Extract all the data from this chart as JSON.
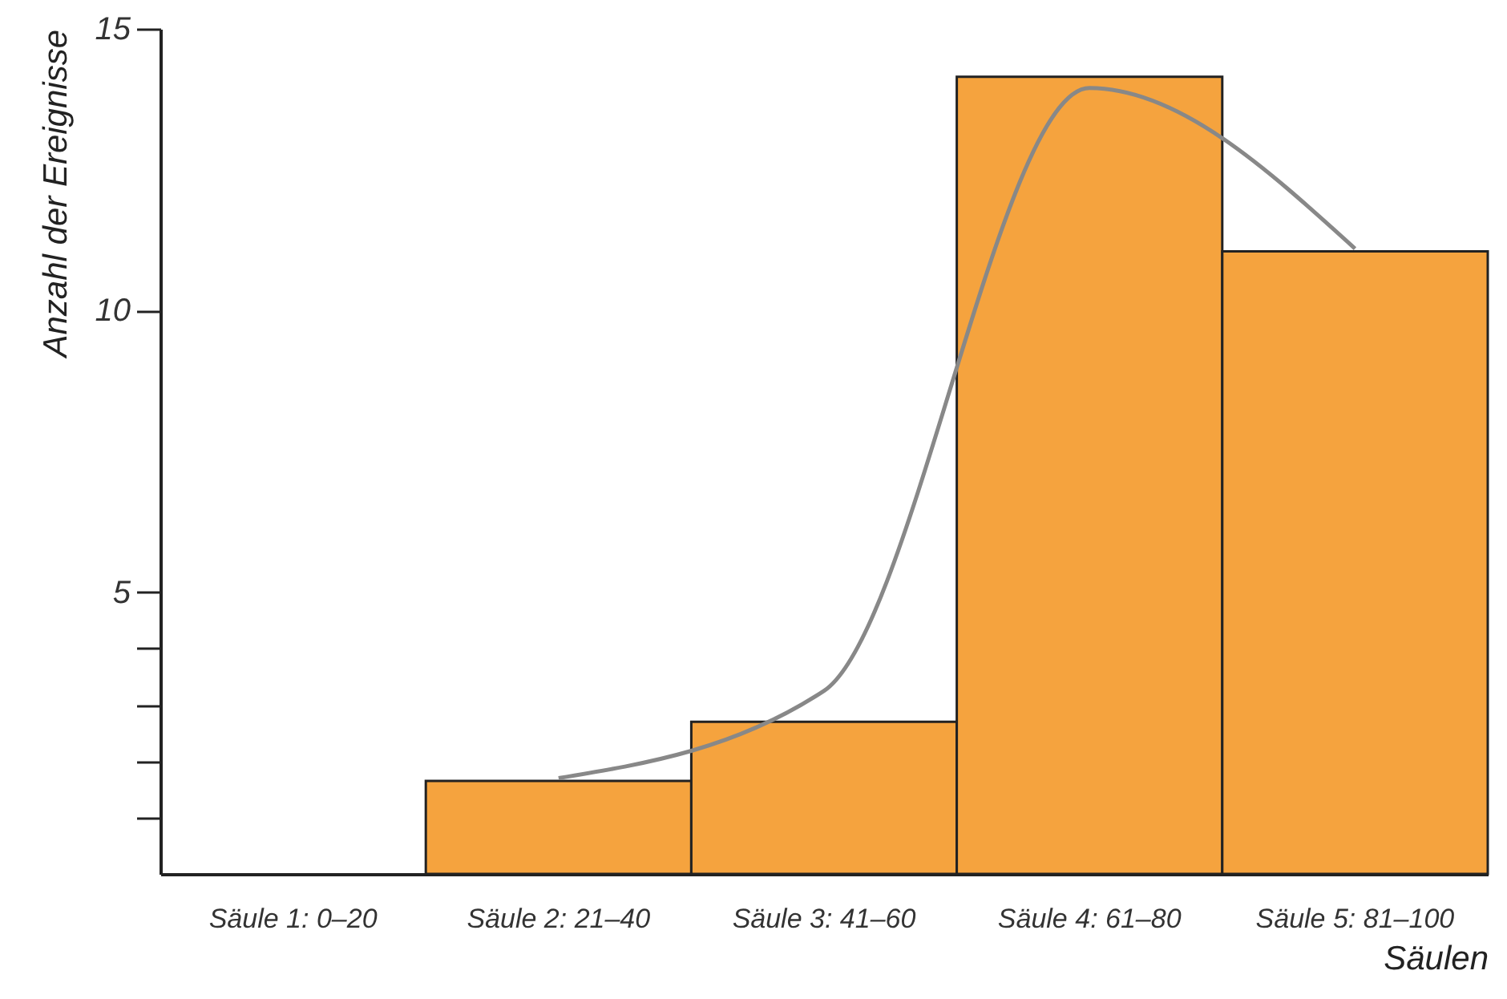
{
  "chart_data": {
    "type": "bar",
    "xlabel": "Säulen",
    "ylabel": "Anzahl der Ereignisse",
    "categories": [
      "Säule 1: 0–20",
      "Säule 2: 21–40",
      "Säule 3: 41–60",
      "Säule 4: 61–80",
      "Säule 5: 81–100"
    ],
    "series": [
      {
        "color": "#f5a33e",
        "values": [
          null,
          1.65,
          2.7,
          14.15,
          11.05
        ]
      },
      {
        "type": "line",
        "color": "#888888",
        "values": [
          null,
          1.7,
          3.25,
          13.95,
          11.1
        ]
      }
    ],
    "ylim": [
      0,
      15
    ],
    "yticks": [
      {
        "value": 1,
        "label": null
      },
      {
        "value": 2,
        "label": null
      },
      {
        "value": 3,
        "label": null
      },
      {
        "value": 4,
        "label": null
      },
      5,
      10,
      15
    ],
    "grid": false
  }
}
